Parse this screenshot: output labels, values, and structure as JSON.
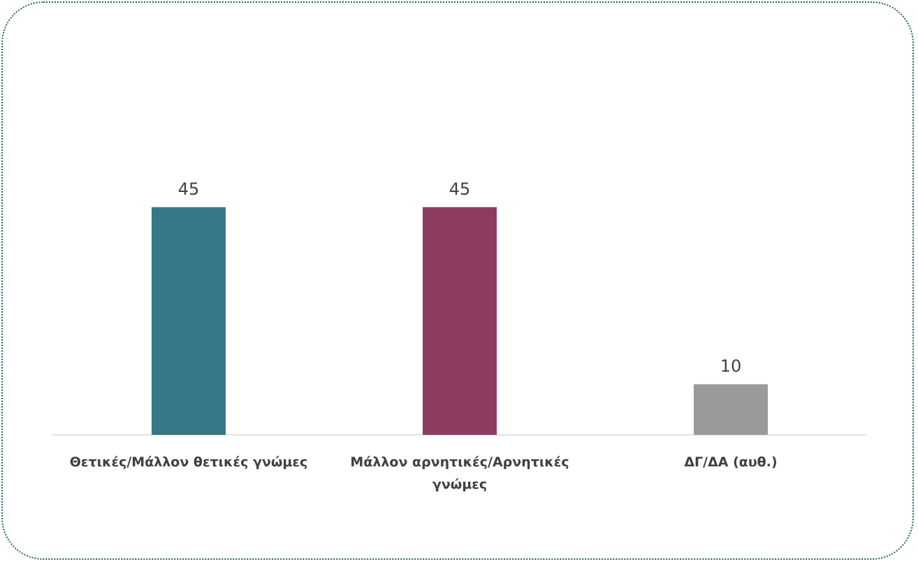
{
  "chart_data": {
    "type": "bar",
    "categories": [
      [
        "Θετικές/Μάλλον θετικές γνώμες"
      ],
      [
        "Μάλλον αρνητικές/Αρνητικές",
        "γνώμες"
      ],
      [
        "ΔΓ/ΔΑ (αυθ.)"
      ]
    ],
    "values": [
      45,
      45,
      10
    ],
    "value_labels": [
      "45",
      "45",
      "10"
    ],
    "colors": [
      "#35788a",
      "#8e3b62",
      "#9a9a9a"
    ],
    "ylim": [
      0,
      50
    ],
    "grid": false,
    "legend": "none"
  }
}
